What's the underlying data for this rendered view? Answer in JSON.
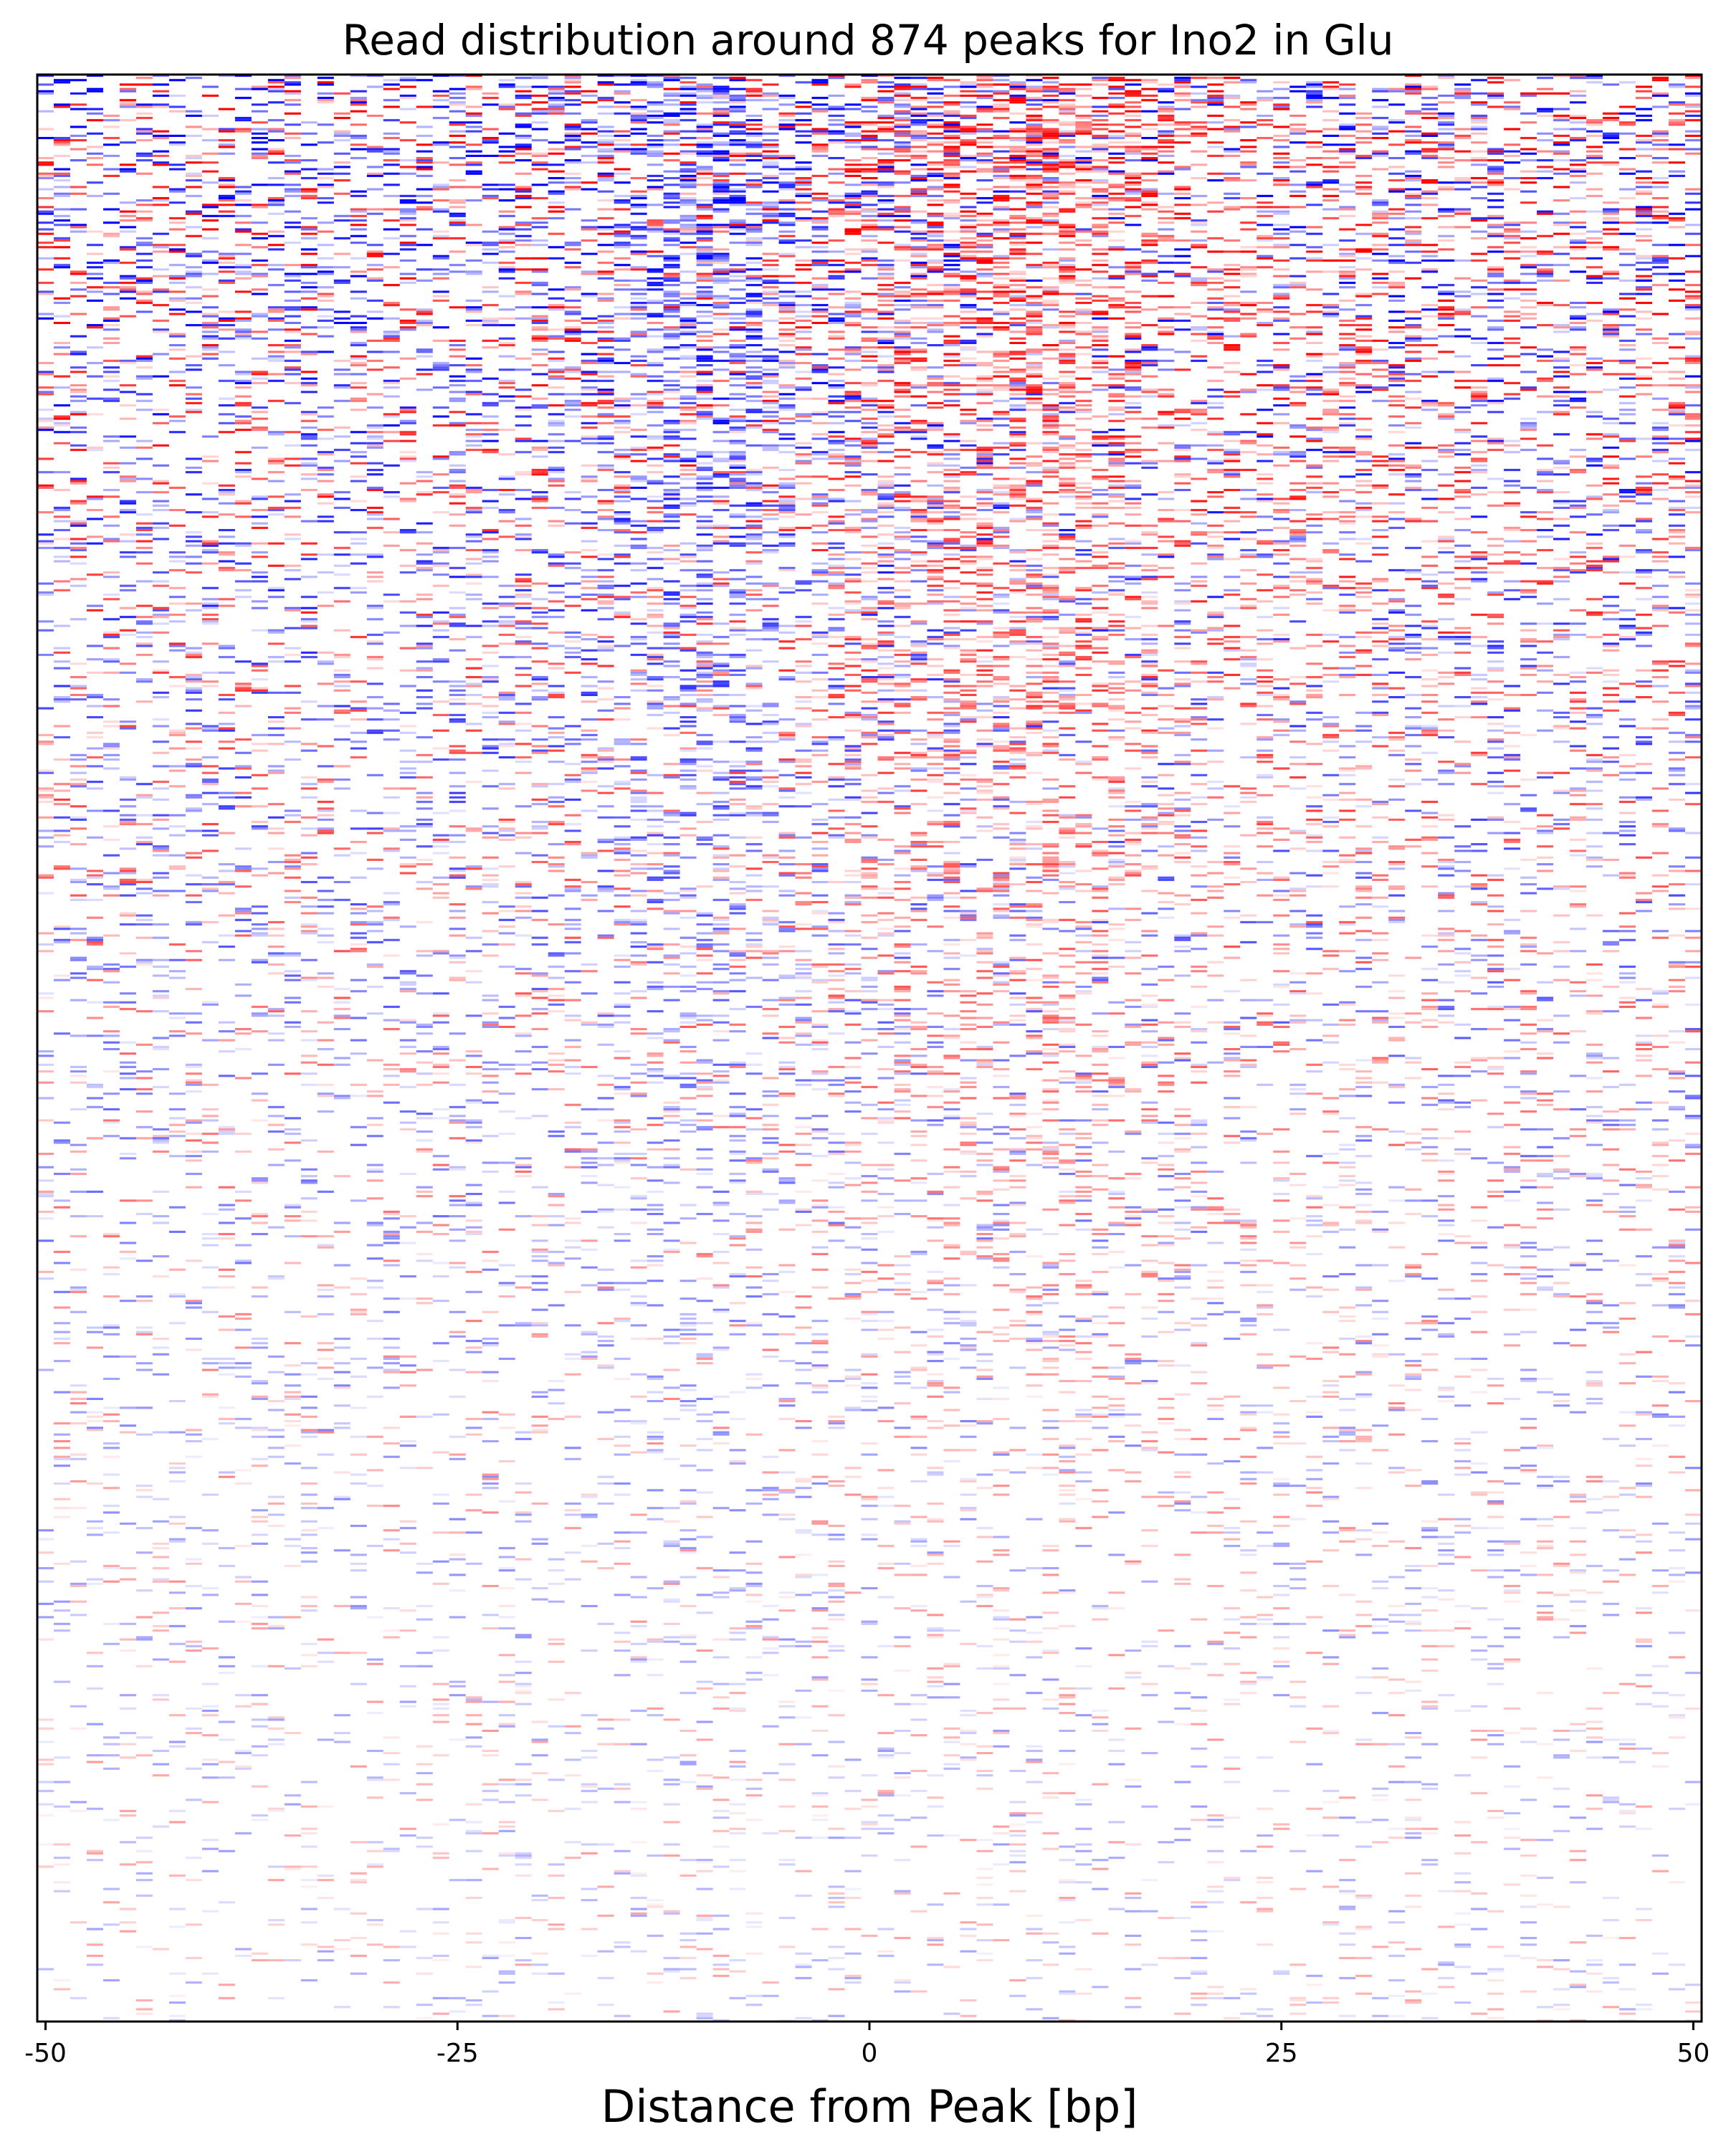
{
  "chart_data": {
    "type": "heatmap",
    "title": "Read distribution around 874 peaks for Ino2 in Glu",
    "xlabel": "Distance from Peak [bp]",
    "ylabel": "",
    "xlim": [
      -50.5,
      50.5
    ],
    "x_ticks": [
      -50,
      -25,
      0,
      25,
      50
    ],
    "x_tick_labels": [
      "-50",
      "-25",
      "0",
      "25",
      "50"
    ],
    "n_rows": 874,
    "rows_sorted_by_signal": "descending",
    "colors": {
      "background": "#ffffff",
      "upstream_strand": "#0000ff",
      "downstream_strand": "#ff0000",
      "frame": "#000000"
    },
    "strand_profiles": {
      "x_bp": [
        -50,
        -40,
        -30,
        -20,
        -15,
        -12,
        -10,
        -8,
        -6,
        -4,
        -2,
        0,
        2,
        4,
        6,
        8,
        10,
        12,
        14,
        16,
        20,
        30,
        40,
        50
      ],
      "blue_density": [
        0.25,
        0.26,
        0.27,
        0.32,
        0.45,
        0.7,
        0.85,
        0.8,
        0.6,
        0.45,
        0.4,
        0.38,
        0.35,
        0.3,
        0.26,
        0.2,
        0.16,
        0.14,
        0.12,
        0.12,
        0.14,
        0.18,
        0.2,
        0.22
      ],
      "red_density": [
        0.15,
        0.16,
        0.16,
        0.17,
        0.18,
        0.18,
        0.18,
        0.2,
        0.25,
        0.32,
        0.42,
        0.55,
        0.6,
        0.62,
        0.68,
        0.8,
        0.88,
        0.85,
        0.75,
        0.6,
        0.42,
        0.3,
        0.26,
        0.25
      ]
    }
  }
}
